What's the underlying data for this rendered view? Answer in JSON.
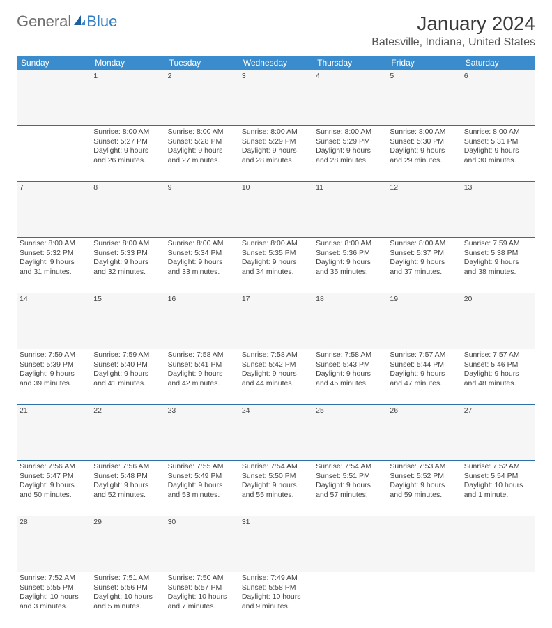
{
  "brand": {
    "part1": "General",
    "part2": "Blue"
  },
  "header": {
    "month_title": "January 2024",
    "location": "Batesville, Indiana, United States"
  },
  "colors": {
    "header_bg": "#3a8ccc",
    "header_text": "#ffffff",
    "row_border": "#2f6fa8",
    "daynum_bg": "#f6f6f6",
    "body_text": "#444444",
    "logo_blue": "#2f7cc4",
    "logo_gray": "#6e6e6e"
  },
  "day_headers": [
    "Sunday",
    "Monday",
    "Tuesday",
    "Wednesday",
    "Thursday",
    "Friday",
    "Saturday"
  ],
  "weeks": [
    {
      "nums": [
        "",
        "1",
        "2",
        "3",
        "4",
        "5",
        "6"
      ],
      "cells": [
        [],
        [
          "Sunrise: 8:00 AM",
          "Sunset: 5:27 PM",
          "Daylight: 9 hours",
          "and 26 minutes."
        ],
        [
          "Sunrise: 8:00 AM",
          "Sunset: 5:28 PM",
          "Daylight: 9 hours",
          "and 27 minutes."
        ],
        [
          "Sunrise: 8:00 AM",
          "Sunset: 5:29 PM",
          "Daylight: 9 hours",
          "and 28 minutes."
        ],
        [
          "Sunrise: 8:00 AM",
          "Sunset: 5:29 PM",
          "Daylight: 9 hours",
          "and 28 minutes."
        ],
        [
          "Sunrise: 8:00 AM",
          "Sunset: 5:30 PM",
          "Daylight: 9 hours",
          "and 29 minutes."
        ],
        [
          "Sunrise: 8:00 AM",
          "Sunset: 5:31 PM",
          "Daylight: 9 hours",
          "and 30 minutes."
        ]
      ]
    },
    {
      "nums": [
        "7",
        "8",
        "9",
        "10",
        "11",
        "12",
        "13"
      ],
      "cells": [
        [
          "Sunrise: 8:00 AM",
          "Sunset: 5:32 PM",
          "Daylight: 9 hours",
          "and 31 minutes."
        ],
        [
          "Sunrise: 8:00 AM",
          "Sunset: 5:33 PM",
          "Daylight: 9 hours",
          "and 32 minutes."
        ],
        [
          "Sunrise: 8:00 AM",
          "Sunset: 5:34 PM",
          "Daylight: 9 hours",
          "and 33 minutes."
        ],
        [
          "Sunrise: 8:00 AM",
          "Sunset: 5:35 PM",
          "Daylight: 9 hours",
          "and 34 minutes."
        ],
        [
          "Sunrise: 8:00 AM",
          "Sunset: 5:36 PM",
          "Daylight: 9 hours",
          "and 35 minutes."
        ],
        [
          "Sunrise: 8:00 AM",
          "Sunset: 5:37 PM",
          "Daylight: 9 hours",
          "and 37 minutes."
        ],
        [
          "Sunrise: 7:59 AM",
          "Sunset: 5:38 PM",
          "Daylight: 9 hours",
          "and 38 minutes."
        ]
      ]
    },
    {
      "nums": [
        "14",
        "15",
        "16",
        "17",
        "18",
        "19",
        "20"
      ],
      "cells": [
        [
          "Sunrise: 7:59 AM",
          "Sunset: 5:39 PM",
          "Daylight: 9 hours",
          "and 39 minutes."
        ],
        [
          "Sunrise: 7:59 AM",
          "Sunset: 5:40 PM",
          "Daylight: 9 hours",
          "and 41 minutes."
        ],
        [
          "Sunrise: 7:58 AM",
          "Sunset: 5:41 PM",
          "Daylight: 9 hours",
          "and 42 minutes."
        ],
        [
          "Sunrise: 7:58 AM",
          "Sunset: 5:42 PM",
          "Daylight: 9 hours",
          "and 44 minutes."
        ],
        [
          "Sunrise: 7:58 AM",
          "Sunset: 5:43 PM",
          "Daylight: 9 hours",
          "and 45 minutes."
        ],
        [
          "Sunrise: 7:57 AM",
          "Sunset: 5:44 PM",
          "Daylight: 9 hours",
          "and 47 minutes."
        ],
        [
          "Sunrise: 7:57 AM",
          "Sunset: 5:46 PM",
          "Daylight: 9 hours",
          "and 48 minutes."
        ]
      ]
    },
    {
      "nums": [
        "21",
        "22",
        "23",
        "24",
        "25",
        "26",
        "27"
      ],
      "cells": [
        [
          "Sunrise: 7:56 AM",
          "Sunset: 5:47 PM",
          "Daylight: 9 hours",
          "and 50 minutes."
        ],
        [
          "Sunrise: 7:56 AM",
          "Sunset: 5:48 PM",
          "Daylight: 9 hours",
          "and 52 minutes."
        ],
        [
          "Sunrise: 7:55 AM",
          "Sunset: 5:49 PM",
          "Daylight: 9 hours",
          "and 53 minutes."
        ],
        [
          "Sunrise: 7:54 AM",
          "Sunset: 5:50 PM",
          "Daylight: 9 hours",
          "and 55 minutes."
        ],
        [
          "Sunrise: 7:54 AM",
          "Sunset: 5:51 PM",
          "Daylight: 9 hours",
          "and 57 minutes."
        ],
        [
          "Sunrise: 7:53 AM",
          "Sunset: 5:52 PM",
          "Daylight: 9 hours",
          "and 59 minutes."
        ],
        [
          "Sunrise: 7:52 AM",
          "Sunset: 5:54 PM",
          "Daylight: 10 hours",
          "and 1 minute."
        ]
      ]
    },
    {
      "nums": [
        "28",
        "29",
        "30",
        "31",
        "",
        "",
        ""
      ],
      "cells": [
        [
          "Sunrise: 7:52 AM",
          "Sunset: 5:55 PM",
          "Daylight: 10 hours",
          "and 3 minutes."
        ],
        [
          "Sunrise: 7:51 AM",
          "Sunset: 5:56 PM",
          "Daylight: 10 hours",
          "and 5 minutes."
        ],
        [
          "Sunrise: 7:50 AM",
          "Sunset: 5:57 PM",
          "Daylight: 10 hours",
          "and 7 minutes."
        ],
        [
          "Sunrise: 7:49 AM",
          "Sunset: 5:58 PM",
          "Daylight: 10 hours",
          "and 9 minutes."
        ],
        [],
        [],
        []
      ]
    }
  ]
}
